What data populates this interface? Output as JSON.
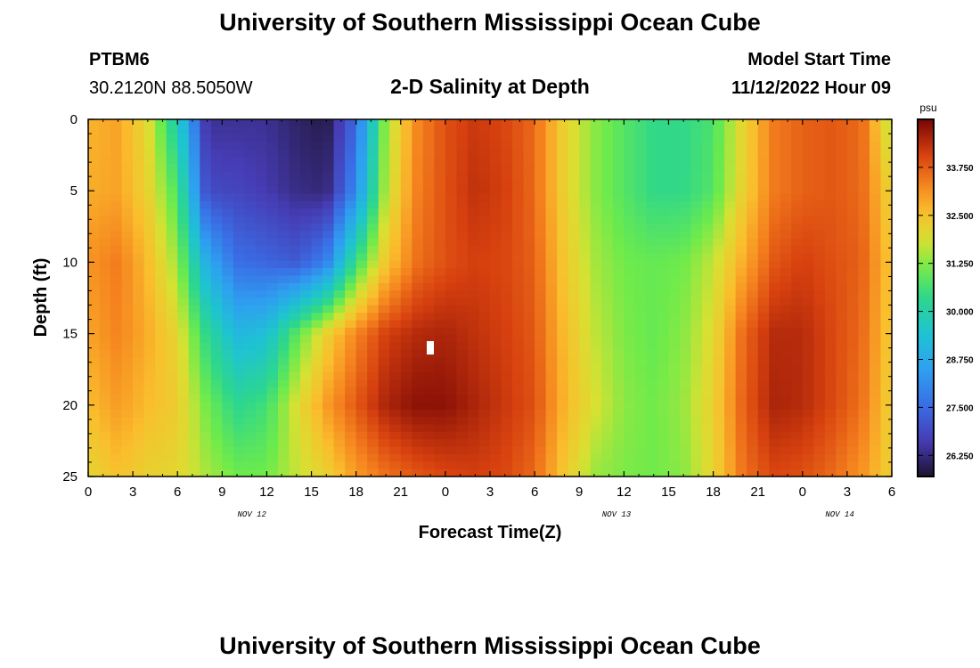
{
  "header": {
    "title": "University of Southern Mississippi Ocean Cube",
    "station": "PTBM6",
    "coordinates": "30.2120N  88.5050W",
    "subtitle": "2-D Salinity at Depth",
    "model_label": "Model Start Time",
    "model_time": "11/12/2022 Hour 09"
  },
  "footer": {
    "title": "University of Southern Mississippi Ocean Cube"
  },
  "chart_data": {
    "type": "heatmap",
    "title": "2-D Salinity at Depth",
    "xlabel": "Forecast Time(Z)",
    "ylabel": "Depth (ft)",
    "x_ticks": [
      "0",
      "3",
      "6",
      "9",
      "12",
      "15",
      "18",
      "21",
      "0",
      "3",
      "6",
      "9",
      "12",
      "15",
      "18",
      "21",
      "0",
      "3",
      "6"
    ],
    "x_range_hours": [
      0,
      54
    ],
    "date_labels": [
      {
        "label": "NOV 12",
        "hour": 11
      },
      {
        "label": "NOV 13",
        "hour": 35.5
      },
      {
        "label": "NOV 14",
        "hour": 50.5
      }
    ],
    "y_ticks": [
      "0",
      "5",
      "10",
      "15",
      "20",
      "25"
    ],
    "y_range_ft": [
      0,
      25
    ],
    "colorbar": {
      "unit": "psu",
      "tick_labels": [
        "33.750",
        "32.500",
        "31.250",
        "30.000",
        "28.750",
        "27.500",
        "26.250"
      ],
      "min": 25.7,
      "max": 35.0
    },
    "grid": {
      "hours": [
        0,
        2,
        4,
        6,
        8,
        10,
        12,
        14,
        16,
        18,
        20,
        22,
        24,
        26,
        28,
        30,
        32,
        34,
        36,
        38,
        40,
        42,
        44,
        46,
        48,
        50,
        52,
        54
      ],
      "depths_ft": [
        0,
        5,
        10,
        15,
        20,
        25
      ],
      "salinity_psu": [
        [
          32.7,
          32.9,
          32.0,
          29.8,
          26.4,
          26.4,
          26.4,
          26.1,
          25.9,
          27.5,
          31.4,
          33.2,
          33.9,
          34.2,
          34.0,
          33.6,
          32.2,
          31.3,
          30.8,
          30.4,
          30.4,
          30.7,
          32.1,
          33.4,
          33.7,
          33.8,
          33.6,
          31.5
        ],
        [
          32.8,
          32.9,
          32.2,
          30.7,
          26.9,
          26.8,
          26.6,
          26.3,
          26.2,
          28.1,
          31.6,
          33.3,
          33.9,
          34.3,
          34.1,
          33.6,
          32.2,
          31.3,
          30.8,
          30.4,
          30.4,
          30.8,
          32.2,
          33.4,
          33.7,
          33.8,
          33.6,
          32.1
        ],
        [
          33.1,
          33.4,
          32.6,
          31.4,
          28.8,
          27.6,
          27.4,
          27.2,
          27.9,
          30.5,
          32.4,
          33.5,
          33.9,
          34.1,
          34.0,
          33.7,
          32.4,
          31.5,
          31.1,
          31.0,
          31.1,
          31.7,
          32.8,
          33.8,
          34.1,
          33.9,
          33.7,
          32.4
        ],
        [
          32.9,
          33.3,
          32.8,
          32.1,
          30.3,
          29.1,
          29.3,
          30.9,
          32.2,
          33.3,
          34.1,
          34.4,
          34.5,
          34.3,
          34.1,
          33.8,
          32.6,
          31.7,
          31.2,
          31.0,
          31.3,
          32.0,
          33.6,
          34.4,
          34.4,
          34.0,
          33.6,
          32.3
        ],
        [
          32.6,
          33.0,
          32.6,
          32.3,
          31.1,
          30.3,
          30.6,
          31.9,
          33.0,
          33.8,
          34.5,
          34.8,
          34.8,
          34.5,
          34.2,
          33.9,
          32.7,
          31.9,
          31.3,
          31.1,
          31.4,
          32.2,
          33.7,
          34.5,
          34.4,
          34.0,
          33.5,
          32.2
        ],
        [
          32.1,
          32.5,
          32.2,
          32.1,
          31.5,
          31.1,
          31.1,
          31.7,
          32.2,
          33.0,
          33.5,
          33.8,
          34.0,
          34.1,
          34.0,
          33.6,
          32.4,
          31.4,
          31.2,
          31.1,
          31.3,
          32.1,
          33.5,
          34.0,
          33.9,
          33.6,
          33.1,
          32.2
        ]
      ]
    },
    "annotation": "white data-gap marker near hour 25.5, depth 16 ft"
  }
}
